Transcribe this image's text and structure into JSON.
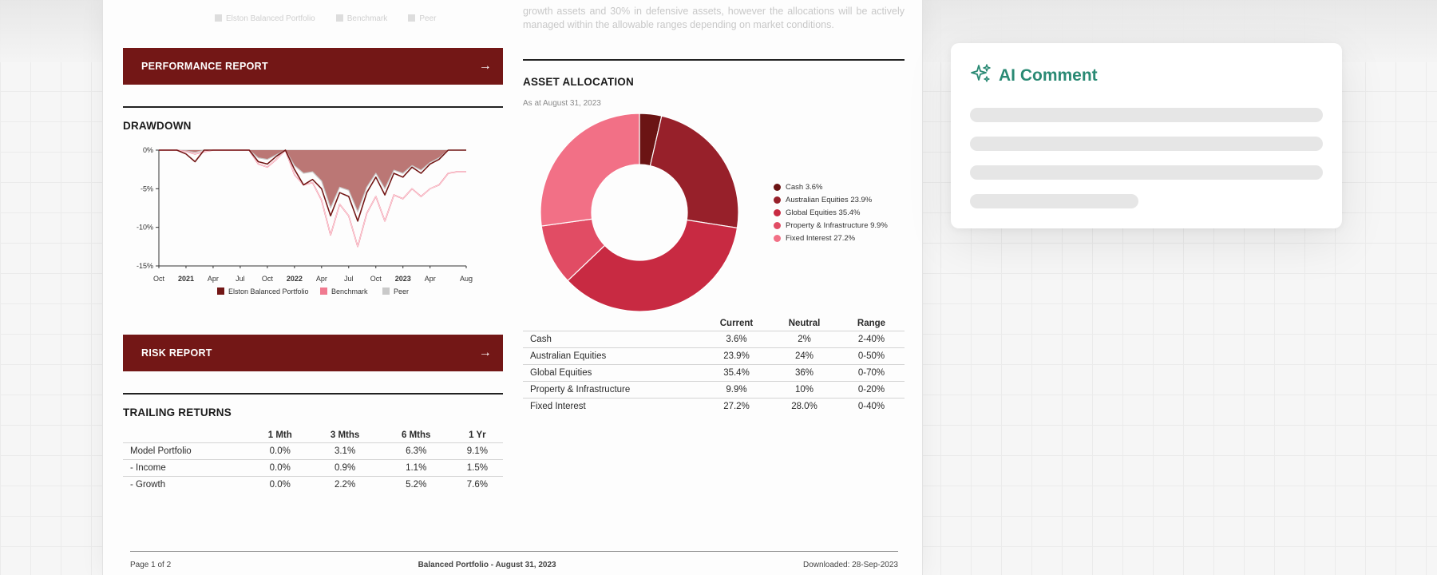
{
  "background_text": {
    "legend": [
      "Elston Balanced Portfolio",
      "Benchmark",
      "Peer"
    ],
    "paragraph": "growth assets and 30% in defensive assets, however the allocations will be actively managed within the allowable ranges depending on market conditions."
  },
  "performance_banner": {
    "label": "PERFORMANCE REPORT",
    "icon": "arrow-right-icon"
  },
  "drawdown": {
    "title": "DRAWDOWN",
    "chart_data": {
      "type": "area",
      "x": [
        "2020-10",
        "2020-11",
        "2020-12",
        "2021-01",
        "2021-02",
        "2021-03",
        "2021-04",
        "2021-05",
        "2021-06",
        "2021-07",
        "2021-08",
        "2021-09",
        "2021-10",
        "2021-11",
        "2021-12",
        "2022-01",
        "2022-02",
        "2022-03",
        "2022-04",
        "2022-05",
        "2022-06",
        "2022-07",
        "2022-08",
        "2022-09",
        "2022-10",
        "2022-11",
        "2022-12",
        "2023-01",
        "2023-02",
        "2023-03",
        "2023-04",
        "2023-05",
        "2023-06",
        "2023-07",
        "2023-08"
      ],
      "series": [
        {
          "name": "Elston Balanced Portfolio",
          "color": "#731716",
          "values": [
            0,
            0,
            0,
            -0.5,
            -1.5,
            0,
            0,
            0,
            0,
            0,
            0,
            -1.5,
            -1.8,
            -0.8,
            0,
            -2.5,
            -4.5,
            -3.8,
            -5,
            -8.5,
            -5.5,
            -6,
            -9.2,
            -5.5,
            -3.5,
            -5.8,
            -3,
            -3.5,
            -2.2,
            -3,
            -1.8,
            -1.2,
            0,
            0,
            0
          ]
        },
        {
          "name": "Benchmark",
          "color": "#f07a90",
          "values": [
            0,
            0,
            0,
            -0.2,
            -0.5,
            -0.2,
            0,
            0,
            0,
            0,
            0,
            -1.8,
            -2.2,
            -1.2,
            0,
            -3.2,
            -4.5,
            -4.2,
            -6.5,
            -11,
            -7,
            -8.5,
            -12.5,
            -8.2,
            -6,
            -9.2,
            -5.8,
            -6.3,
            -5,
            -6,
            -5,
            -4.5,
            -3,
            -2.8,
            -2.8
          ]
        },
        {
          "name": "Peer",
          "color": "#c9c9c9",
          "values": [
            0,
            0,
            0,
            -0.1,
            -0.3,
            0,
            0,
            0,
            0,
            0,
            0,
            -1,
            -1.2,
            -0.6,
            0,
            -2,
            -3,
            -2.8,
            -4,
            -7.5,
            -4.8,
            -5.2,
            -8,
            -4.8,
            -3,
            -5,
            -2.6,
            -3,
            -2,
            -2.6,
            -1.6,
            -1,
            0,
            0,
            0
          ]
        }
      ],
      "shaded_area": "#b7706e",
      "ylim": [
        -15,
        0
      ],
      "yticks": [
        "0%",
        "-5%",
        "-10%",
        "-15%"
      ],
      "xticks": [
        "Oct",
        "2021",
        "Apr",
        "Jul",
        "Oct",
        "2022",
        "Apr",
        "Jul",
        "Oct",
        "2023",
        "Apr",
        "Aug"
      ],
      "bold_xticks": [
        "2021",
        "2022",
        "2023"
      ],
      "legend_position": "bottom-center"
    }
  },
  "risk_banner": {
    "label": "RISK REPORT",
    "icon": "arrow-right-icon"
  },
  "trailing_returns": {
    "title": "TRAILING RETURNS",
    "columns": [
      "",
      "1 Mth",
      "3 Mths",
      "6 Mths",
      "1 Yr"
    ],
    "rows": [
      [
        "Model Portfolio",
        "0.0%",
        "3.1%",
        "6.3%",
        "9.1%"
      ],
      [
        "- Income",
        "0.0%",
        "0.9%",
        "1.1%",
        "1.5%"
      ],
      [
        "- Growth",
        "0.0%",
        "2.2%",
        "5.2%",
        "7.6%"
      ]
    ]
  },
  "asset_allocation": {
    "title": "ASSET ALLOCATION",
    "as_at": "As at August 31, 2023",
    "chart_data": {
      "type": "pie",
      "donut": true,
      "categories": [
        "Cash",
        "Australian Equities",
        "Global Equities",
        "Property & Infrastructure",
        "Fixed Interest"
      ],
      "values": [
        3.6,
        23.9,
        35.4,
        9.9,
        27.2
      ],
      "colors": [
        "#6b1414",
        "#97202a",
        "#c82a42",
        "#e14c64",
        "#f27086"
      ],
      "legend_labels": [
        "Cash 3.6%",
        "Australian Equities 23.9%",
        "Global Equities 35.4%",
        "Property & Infrastructure 9.9%",
        "Fixed Interest 27.2%"
      ],
      "legend_position": "right"
    },
    "columns": [
      "",
      "Current",
      "Neutral",
      "Range"
    ],
    "rows": [
      [
        "Cash",
        "3.6%",
        "2%",
        "2-40%"
      ],
      [
        "Australian Equities",
        "23.9%",
        "24%",
        "0-50%"
      ],
      [
        "Global Equities",
        "35.4%",
        "36%",
        "0-70%"
      ],
      [
        "Property & Infrastructure",
        "9.9%",
        "10%",
        "0-20%"
      ],
      [
        "Fixed Interest",
        "27.2%",
        "28.0%",
        "0-40%"
      ]
    ]
  },
  "footer": {
    "page": "Page 1 of 2",
    "title": "Balanced Portfolio - August 31, 2023",
    "downloaded": "Downloaded: 28-Sep-2023"
  },
  "ai_comment": {
    "title": "AI Comment",
    "icon": "sparkles-icon",
    "accent": "#2a8a74",
    "skeleton_lines": 4
  }
}
